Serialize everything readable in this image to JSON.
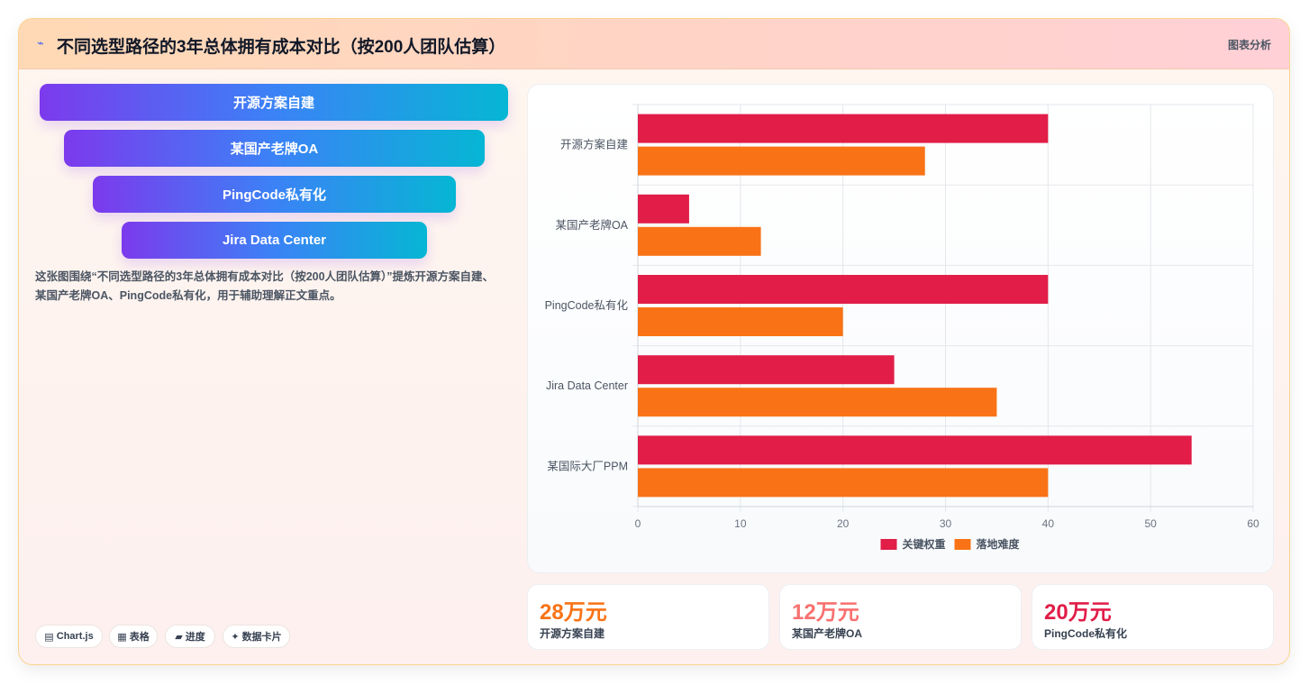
{
  "header": {
    "logo_icon": "⌁",
    "title": "不同选型路径的3年总体拥有成本对比（按200人团队估算）",
    "tag": "图表分析"
  },
  "funnel": [
    "开源方案自建",
    "某国产老牌OA",
    "PingCode私有化",
    "Jira Data Center"
  ],
  "description": "这张图围绕“不同选型路径的3年总体拥有成本对比（按200人团队估算）”提炼开源方案自建、某国产老牌OA、PingCode私有化，用于辅助理解正文重点。",
  "pills": [
    {
      "icon": "▤",
      "label": "Chart.js"
    },
    {
      "icon": "▦",
      "label": "表格"
    },
    {
      "icon": "▰",
      "label": "进度"
    },
    {
      "icon": "✦",
      "label": "数据卡片"
    }
  ],
  "chart_data": {
    "type": "bar",
    "orientation": "horizontal",
    "categories": [
      "开源方案自建",
      "某国产老牌OA",
      "PingCode私有化",
      "Jira Data Center",
      "某国际大厂PPM"
    ],
    "series": [
      {
        "name": "关键权重",
        "color": "#e11d48",
        "values": [
          40,
          5,
          40,
          25,
          54
        ]
      },
      {
        "name": "落地难度",
        "color": "#f97316",
        "values": [
          28,
          12,
          20,
          35,
          40
        ]
      }
    ],
    "xlim": [
      0,
      60
    ],
    "xticks": [
      0,
      10,
      20,
      30,
      40,
      50,
      60
    ],
    "grid": true,
    "legend": "bottom"
  },
  "stats": [
    {
      "value": "28万元",
      "label": "开源方案自建",
      "color": "#f97316"
    },
    {
      "value": "12万元",
      "label": "某国产老牌OA",
      "color": "#f87171"
    },
    {
      "value": "20万元",
      "label": "PingCode私有化",
      "color": "#e11d48"
    }
  ]
}
